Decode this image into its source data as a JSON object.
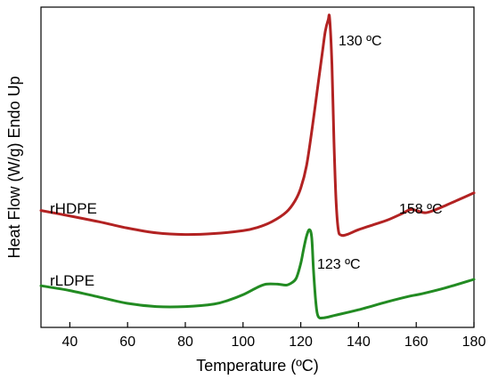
{
  "chart_data": {
    "type": "line",
    "title": "",
    "xlabel": "Temperature (ºC)",
    "ylabel": "Heat Flow (W/g) Endo Up",
    "xlim": [
      30,
      180
    ],
    "ylim": [
      0,
      100
    ],
    "y_tick_labels_shown": false,
    "grid": false,
    "x_ticks": [
      "40",
      "60",
      "80",
      "100",
      "120",
      "140",
      "160",
      "180"
    ],
    "series": [
      {
        "name": "rHDPE",
        "color": "#b22222",
        "x": [
          30,
          40,
          50,
          60,
          70,
          80,
          90,
          100,
          105,
          110,
          115,
          118,
          120,
          122,
          124,
          126,
          127.5,
          128.5,
          129.5,
          130,
          130.8,
          131.5,
          132.2,
          133,
          134,
          136,
          140,
          145,
          150,
          155,
          158,
          160,
          163,
          166,
          170,
          175,
          180
        ],
        "values": [
          36.5,
          34.8,
          33.0,
          31.0,
          29.5,
          29.0,
          29.3,
          30.2,
          31.2,
          33.0,
          36.0,
          39.5,
          43.5,
          50.5,
          62.5,
          76.0,
          86.0,
          92.5,
          96.0,
          96.5,
          82.0,
          58.0,
          40.0,
          30.5,
          28.8,
          29.0,
          30.5,
          32.0,
          33.5,
          35.5,
          36.8,
          36.5,
          35.8,
          36.5,
          38.0,
          40.0,
          42.0
        ],
        "peak_label": "130 ºC"
      },
      {
        "name": "rLDPE",
        "color": "#228b22",
        "x": [
          30,
          40,
          50,
          60,
          70,
          80,
          90,
          95,
          100,
          105,
          108,
          112,
          115,
          117,
          118.5,
          120,
          121,
          122,
          123,
          123.8,
          124.4,
          125.2,
          126,
          128,
          132,
          140,
          150,
          158,
          162,
          170,
          180
        ],
        "values": [
          13.0,
          11.5,
          9.5,
          7.5,
          6.5,
          6.5,
          7.3,
          8.5,
          10.2,
          12.5,
          13.5,
          13.5,
          13.2,
          14.0,
          15.5,
          20.0,
          24.5,
          28.5,
          30.5,
          28.0,
          18.0,
          8.0,
          3.5,
          3.0,
          3.8,
          5.5,
          8.0,
          9.8,
          10.5,
          12.3,
          15.0
        ],
        "peak_label": "123 ºC"
      }
    ],
    "extra_annotation": "158 ºC"
  }
}
